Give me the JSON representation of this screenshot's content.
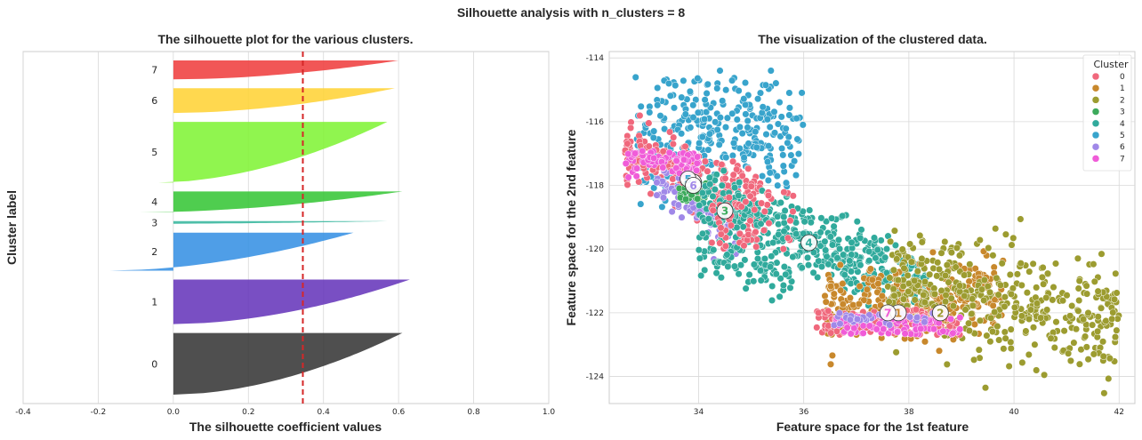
{
  "figure": {
    "suptitle": "Silhouette analysis with n_clusters = 8"
  },
  "chart_data": [
    {
      "type": "area",
      "title": "The silhouette plot for the various clusters.",
      "xlabel": "The silhouette coefficient values",
      "ylabel": "Cluster label",
      "xlim": [
        -0.4,
        1.0
      ],
      "xticks": [
        "-0.4",
        "-0.2",
        "0.0",
        "0.2",
        "0.4",
        "0.6",
        "0.8",
        "1.0"
      ],
      "grid": true,
      "average_silhouette": 0.345,
      "average_line_color": "#d62728",
      "clusters": [
        {
          "label": "0",
          "color": "#3c3c3c",
          "size": 650,
          "max": 0.61,
          "min": 0.0
        },
        {
          "label": "1",
          "color": "#6a3cbc",
          "size": 470,
          "max": 0.63,
          "min": 0.0
        },
        {
          "label": "2",
          "color": "#3c94e4",
          "size": 400,
          "max": 0.48,
          "min": -0.17
        },
        {
          "label": "3",
          "color": "#3cb8a0",
          "size": 28,
          "max": 0.57,
          "min": -0.13
        },
        {
          "label": "4",
          "color": "#3cc83c",
          "size": 220,
          "max": 0.61,
          "min": -0.09
        },
        {
          "label": "5",
          "color": "#84f43c",
          "size": 640,
          "max": 0.57,
          "min": -0.04
        },
        {
          "label": "6",
          "color": "#ffd43c",
          "size": 260,
          "max": 0.59,
          "min": 0.0
        },
        {
          "label": "7",
          "color": "#f04444",
          "size": 200,
          "max": 0.6,
          "min": 0.0
        }
      ]
    },
    {
      "type": "scatter",
      "title": "The visualization of the clustered data.",
      "xlabel": "Feature space for the 1st feature",
      "ylabel": "Feature space for the 2nd feature",
      "xlim": [
        32.3,
        42.3
      ],
      "ylim": [
        -124.85,
        -113.8
      ],
      "xticks": [
        "34",
        "36",
        "38",
        "40",
        "42"
      ],
      "yticks": [
        "-114",
        "-116",
        "-118",
        "-120",
        "-122",
        "-124"
      ],
      "grid": true,
      "legend_title": "Cluster",
      "legend_position": "top-right",
      "legend": [
        {
          "label": "0",
          "color": "#f0687c"
        },
        {
          "label": "1",
          "color": "#c8882c"
        },
        {
          "label": "2",
          "color": "#9c9c30"
        },
        {
          "label": "3",
          "color": "#3caa5c"
        },
        {
          "label": "4",
          "color": "#30aa9c"
        },
        {
          "label": "5",
          "color": "#38a4cc"
        },
        {
          "label": "6",
          "color": "#a088e8"
        },
        {
          "label": "7",
          "color": "#f05cd8"
        }
      ],
      "centers": [
        {
          "label": "0",
          "x": 33.9,
          "y": -117.9
        },
        {
          "label": "1",
          "x": 37.8,
          "y": -122.0
        },
        {
          "label": "2",
          "x": 38.6,
          "y": -122.0
        },
        {
          "label": "3",
          "x": 34.5,
          "y": -118.8
        },
        {
          "label": "4",
          "x": 36.1,
          "y": -119.8
        },
        {
          "label": "5",
          "x": 33.8,
          "y": -117.8
        },
        {
          "label": "6",
          "x": 33.9,
          "y": -118.0
        },
        {
          "label": "7",
          "x": 37.6,
          "y": -122.0
        }
      ]
    }
  ]
}
